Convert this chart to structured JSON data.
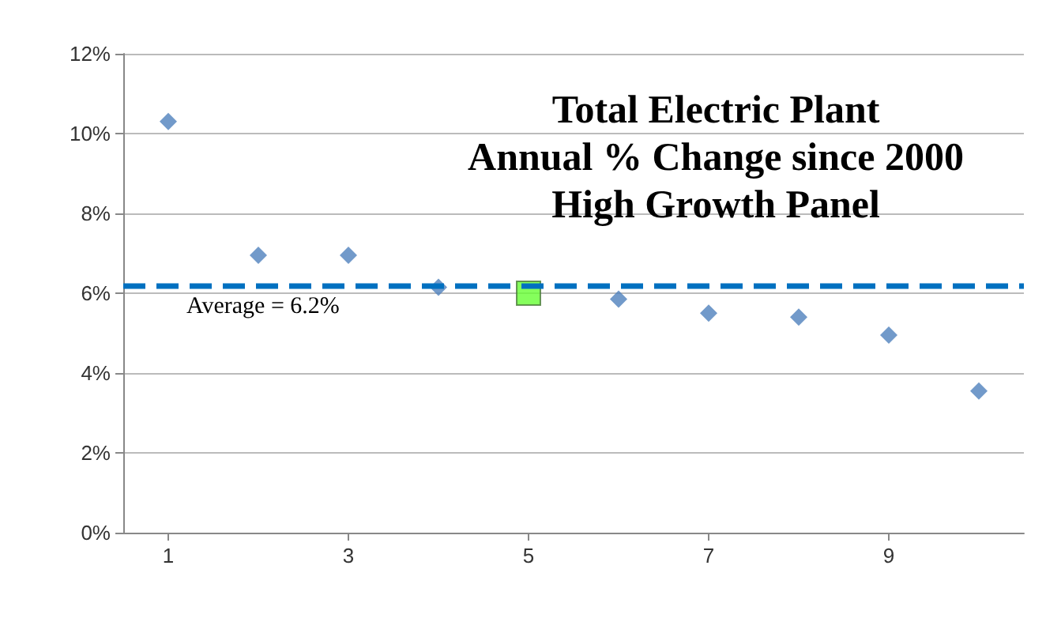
{
  "chart_data": {
    "type": "scatter",
    "title": "Total Electric Plant\nAnnual % Change since 2000\nHigh Growth Panel",
    "xlim": [
      0.5,
      10.5
    ],
    "xticks": [
      1,
      3,
      5,
      7,
      9
    ],
    "ylim": [
      0,
      12
    ],
    "yticks": [
      {
        "value": 0,
        "label": "0%"
      },
      {
        "value": 2,
        "label": "2%"
      },
      {
        "value": 4,
        "label": "4%"
      },
      {
        "value": 6,
        "label": "6%"
      },
      {
        "value": 8,
        "label": "8%"
      },
      {
        "value": 10,
        "label": "10%"
      },
      {
        "value": 12,
        "label": "12%"
      }
    ],
    "grid": "y",
    "series": [
      {
        "color": "#4f81bd",
        "marker": "diamond",
        "x": [
          1,
          2,
          3,
          4,
          6,
          7,
          8,
          9,
          10
        ],
        "values": [
          10.3,
          6.95,
          6.95,
          6.15,
          5.85,
          5.5,
          5.4,
          4.95,
          3.55
        ]
      },
      {
        "color": "#66ff33",
        "marker": "square",
        "x": [
          5
        ],
        "values": [
          6.0
        ]
      }
    ],
    "ref_lines": [
      {
        "axis": "y",
        "value": 6.2,
        "label": "Average = 6.2%",
        "color": "#0070c0",
        "line_style": "dashed"
      }
    ]
  }
}
